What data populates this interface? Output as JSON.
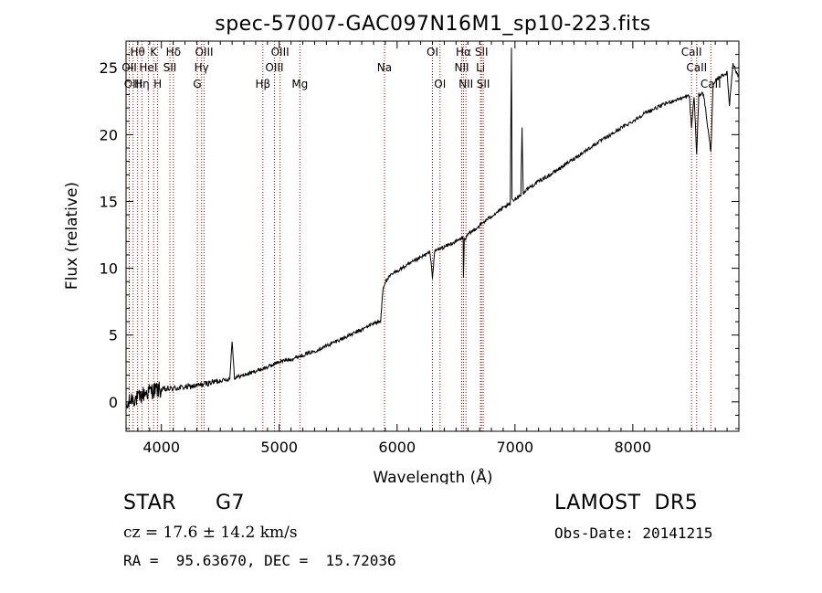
{
  "chart_data": {
    "type": "line",
    "title": "spec-57007-GAC097N16M1_sp10-223.fits",
    "xlabel": "Wavelength (Å)",
    "ylabel": "Flux (relative)",
    "xlim": [
      3700,
      8900
    ],
    "ylim": [
      -2.2,
      27
    ],
    "xticks": [
      "4000",
      "5000",
      "6000",
      "7000",
      "8000"
    ],
    "xtick_values": [
      4000,
      5000,
      6000,
      7000,
      8000
    ],
    "yticks": [
      "0",
      "5",
      "10",
      "15",
      "20",
      "25"
    ],
    "ytick_values": [
      0,
      5,
      10,
      15,
      20,
      25
    ],
    "grid": false,
    "series": [
      {
        "x": [
          3700,
          3750,
          3800,
          3850,
          3900,
          3950,
          4000,
          4100,
          4200,
          4300,
          4400,
          4500,
          4580,
          4600,
          4620,
          4700,
          4800,
          4900,
          5000,
          5100,
          5200,
          5300,
          5400,
          5500,
          5600,
          5700,
          5800,
          5860,
          5880,
          5900,
          5950,
          6000,
          6100,
          6200,
          6280,
          6300,
          6320,
          6400,
          6500,
          6560,
          6563,
          6570,
          6600,
          6700,
          6800,
          6900,
          6960,
          6970,
          6975,
          6980,
          7000,
          7050,
          7060,
          7070,
          7100,
          7200,
          7300,
          7400,
          7500,
          7600,
          7700,
          7800,
          7900,
          8000,
          8100,
          8200,
          8300,
          8400,
          8480,
          8498,
          8520,
          8542,
          8560,
          8600,
          8662,
          8680,
          8700,
          8750,
          8800,
          8820,
          8850,
          8880,
          8900
        ],
        "y": [
          -0.5,
          0.3,
          0.2,
          0.6,
          0.8,
          0.9,
          0.9,
          1.0,
          1.1,
          1.2,
          1.4,
          1.6,
          1.7,
          4.6,
          1.8,
          2.0,
          2.3,
          2.6,
          3.0,
          3.2,
          3.5,
          3.8,
          4.2,
          4.6,
          5.0,
          5.4,
          5.9,
          6.0,
          8.5,
          9.0,
          9.5,
          9.8,
          10.3,
          10.8,
          11.2,
          9.3,
          11.3,
          11.6,
          12.0,
          12.3,
          9.3,
          12.1,
          12.5,
          13.2,
          13.9,
          14.5,
          14.8,
          26.5,
          15.2,
          15.0,
          15.2,
          15.5,
          20.4,
          15.6,
          15.9,
          16.5,
          17.0,
          17.6,
          18.2,
          18.8,
          19.4,
          19.9,
          20.5,
          21.0,
          21.6,
          22.0,
          22.4,
          22.7,
          22.9,
          20.5,
          22.9,
          18.5,
          23.0,
          23.1,
          18.7,
          23.5,
          24.0,
          24.4,
          24.6,
          22.2,
          25.4,
          24.6,
          24.4
        ]
      }
    ],
    "line_markers": [
      {
        "label": "Hθ",
        "w": 3798,
        "row": 0
      },
      {
        "label": "OII",
        "w": 3727,
        "row": 1
      },
      {
        "label": "OIII",
        "w": 3760,
        "row": 2
      },
      {
        "label": "Hη",
        "w": 3835,
        "row": 2
      },
      {
        "label": "HeI",
        "w": 3889,
        "row": 1
      },
      {
        "label": "K",
        "w": 3934,
        "row": 0
      },
      {
        "label": "H",
        "w": 3968,
        "row": 2
      },
      {
        "label": "Hδ",
        "w": 4102,
        "row": 0
      },
      {
        "label": "SII",
        "w": 4072,
        "row": 1
      },
      {
        "label": "OIII",
        "w": 4363,
        "row": 0
      },
      {
        "label": "Hγ",
        "w": 4341,
        "row": 1
      },
      {
        "label": "G",
        "w": 4305,
        "row": 2
      },
      {
        "label": "Hβ",
        "w": 4861,
        "row": 2
      },
      {
        "label": "OIII",
        "w": 5007,
        "row": 0
      },
      {
        "label": "OIII",
        "w": 4959,
        "row": 1
      },
      {
        "label": "Mg",
        "w": 5175,
        "row": 2
      },
      {
        "label": "Na",
        "w": 5893,
        "row": 1
      },
      {
        "label": "OI",
        "w": 6300,
        "row": 0
      },
      {
        "label": "OI",
        "w": 6364,
        "row": 2
      },
      {
        "label": "Hα",
        "w": 6563,
        "row": 0
      },
      {
        "label": "SII",
        "w": 6716,
        "row": 0
      },
      {
        "label": "NII",
        "w": 6548,
        "row": 1
      },
      {
        "label": "Li",
        "w": 6708,
        "row": 1
      },
      {
        "label": "NII",
        "w": 6584,
        "row": 2
      },
      {
        "label": "SII",
        "w": 6731,
        "row": 2
      },
      {
        "label": "CaII",
        "w": 8498,
        "row": 0
      },
      {
        "label": "CaII",
        "w": 8542,
        "row": 1
      },
      {
        "label": "CaII",
        "w": 8662,
        "row": 2
      }
    ]
  },
  "info": {
    "class": "STAR",
    "subclass": "G7",
    "survey": "LAMOST  DR5",
    "cz": "cz = 17.6 ± 14.2 km/s",
    "obs_date": "Obs-Date: 20141215",
    "coords": "RA =  95.63670, DEC =  15.72036"
  },
  "colors": {
    "spectrum": "#000000",
    "line_marker": "#cc0000",
    "background": "#ffffff"
  }
}
